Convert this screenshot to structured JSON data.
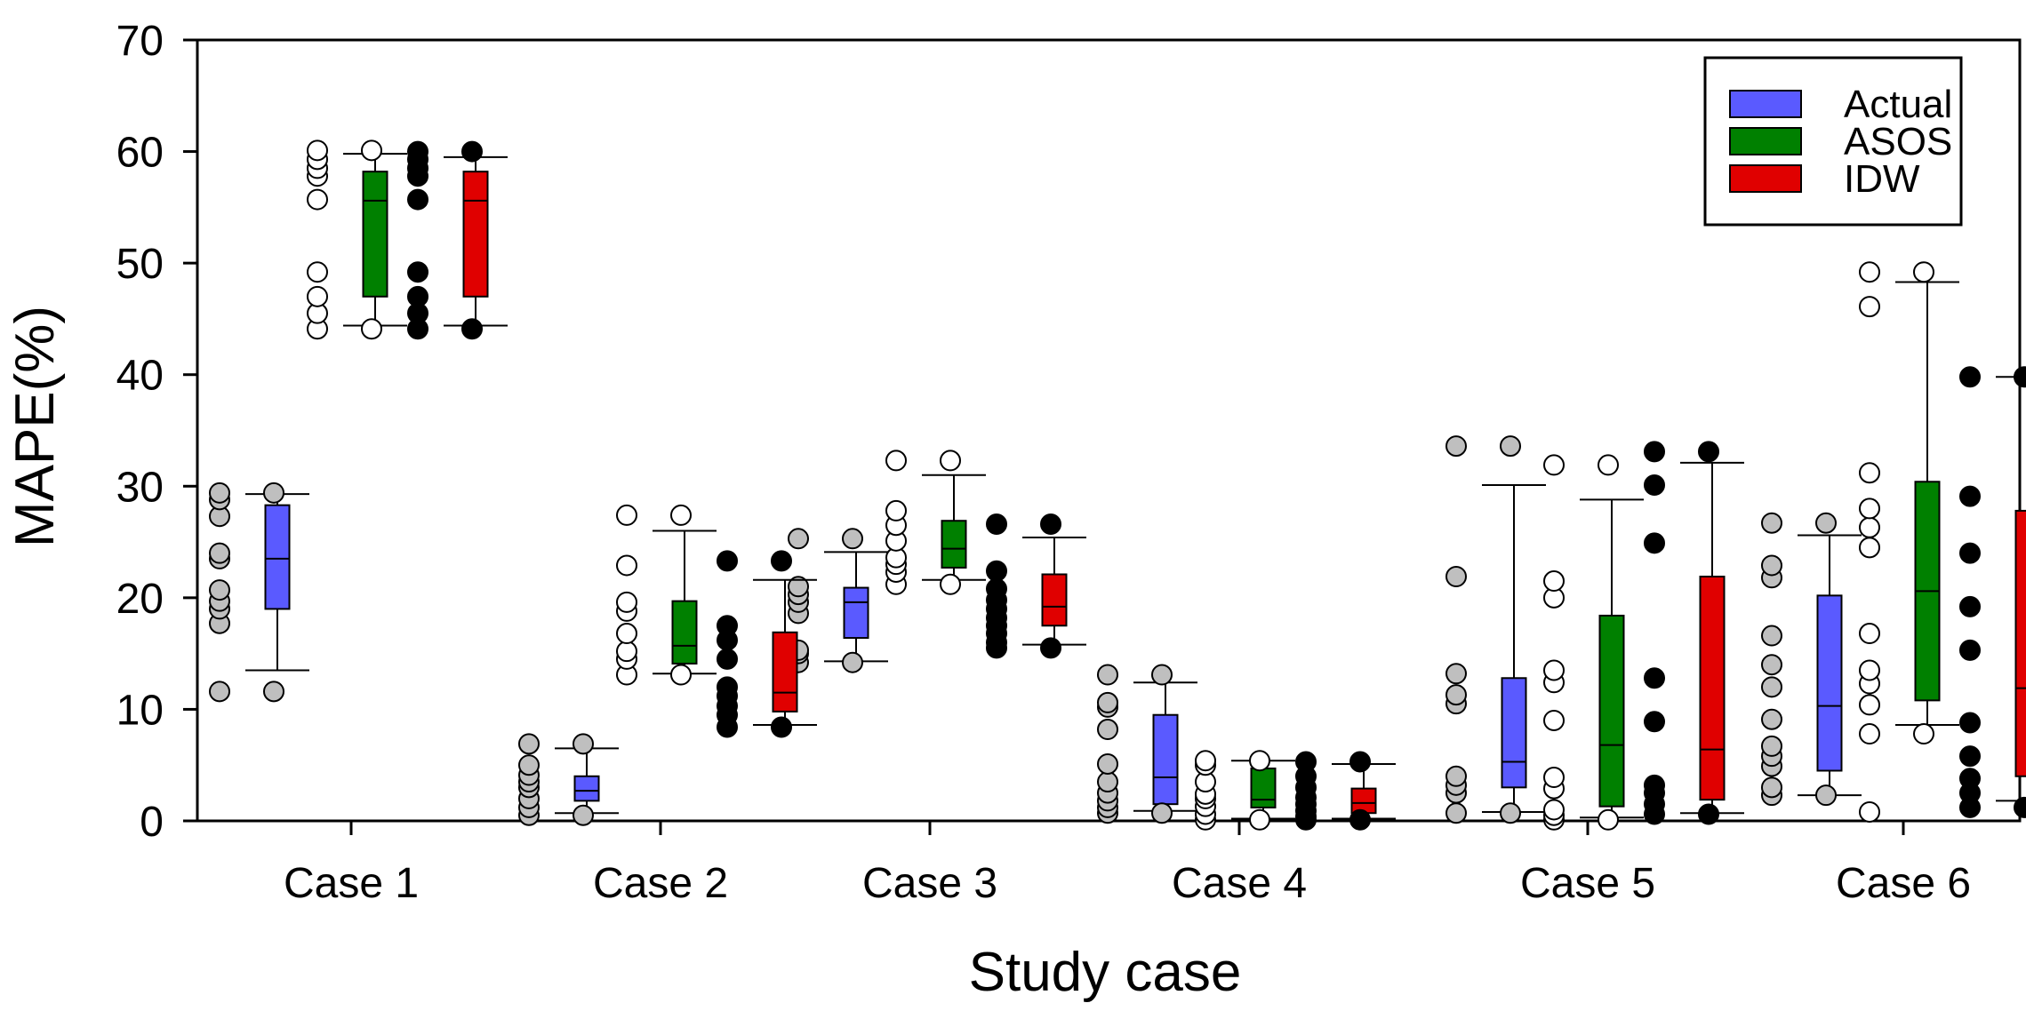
{
  "chart_data": {
    "type": "box",
    "title": "",
    "xlabel": "Study case",
    "ylabel": "MAPE(%)",
    "ylim": [
      0,
      70
    ],
    "yticks": [
      0,
      10,
      20,
      30,
      40,
      50,
      60,
      70
    ],
    "grid": false,
    "legend_position": "top-right",
    "categories": [
      "Case 1",
      "Case 2",
      "Case 3",
      "Case 4",
      "Case 5",
      "Case 6"
    ],
    "series": [
      {
        "name": "Actual",
        "color": "#5a5aff",
        "point_fill": "#bfbfbf",
        "boxes": [
          {
            "case": "Case 1",
            "wlo": 13.5,
            "q1": 19.0,
            "median": 23.5,
            "q3": 28.3,
            "whi": 29.3,
            "points": [
              11.6,
              17.7,
              19.0,
              19.7,
              20.7,
              23.5,
              24.0,
              27.3,
              28.8,
              29.4,
              29.4,
              11.6
            ]
          },
          {
            "case": "Case 2",
            "wlo": 0.7,
            "q1": 1.8,
            "median": 2.7,
            "q3": 4.0,
            "whi": 6.5,
            "points": [
              0.5,
              1.2,
              2.0,
              3.0,
              3.5,
              4.1,
              5.0,
              6.9,
              6.9,
              0.5
            ]
          },
          {
            "case": "Case 3",
            "wlo": 14.3,
            "q1": 16.4,
            "median": 19.6,
            "q3": 20.9,
            "whi": 24.1,
            "points": [
              14.2,
              15.0,
              15.3,
              18.6,
              19.6,
              20.3,
              21.0,
              25.3,
              25.3,
              14.2
            ]
          },
          {
            "case": "Case 4",
            "wlo": 0.9,
            "q1": 1.5,
            "median": 3.9,
            "q3": 9.5,
            "whi": 12.4,
            "points": [
              0.7,
              1.2,
              1.8,
              2.5,
              3.5,
              5.1,
              8.2,
              10.2,
              10.6,
              13.1,
              13.1,
              0.7
            ]
          },
          {
            "case": "Case 5",
            "wlo": 0.8,
            "q1": 3.0,
            "median": 5.3,
            "q3": 12.8,
            "whi": 30.1,
            "points": [
              0.7,
              2.5,
              3.2,
              4.0,
              10.5,
              11.3,
              13.2,
              21.9,
              33.6,
              33.6,
              0.7
            ]
          },
          {
            "case": "Case 6",
            "wlo": 2.3,
            "q1": 4.5,
            "median": 10.3,
            "q3": 20.2,
            "whi": 25.6,
            "points": [
              2.3,
              3.0,
              4.9,
              5.8,
              6.7,
              9.1,
              12.0,
              14.0,
              16.6,
              21.8,
              22.9,
              26.7,
              26.7,
              2.3
            ]
          }
        ]
      },
      {
        "name": "ASOS",
        "color": "#008000",
        "point_fill": "#ffffff",
        "boxes": [
          {
            "case": "Case 1",
            "wlo": 44.4,
            "q1": 47.0,
            "median": 55.6,
            "q3": 58.2,
            "whi": 59.8,
            "points": [
              44.1,
              45.5,
              47.0,
              49.2,
              55.7,
              57.8,
              58.5,
              59.3,
              60.1,
              60.1,
              44.1
            ]
          },
          {
            "case": "Case 2",
            "wlo": 13.2,
            "q1": 14.1,
            "median": 15.7,
            "q3": 19.7,
            "whi": 26.0,
            "points": [
              13.1,
              14.5,
              15.2,
              16.8,
              18.8,
              19.6,
              22.9,
              27.4,
              27.4,
              13.1
            ]
          },
          {
            "case": "Case 3",
            "wlo": 21.6,
            "q1": 22.7,
            "median": 24.4,
            "q3": 26.9,
            "whi": 31.0,
            "points": [
              21.2,
              22.3,
              23.0,
              23.6,
              25.1,
              26.5,
              27.8,
              32.3,
              32.3,
              21.2
            ]
          },
          {
            "case": "Case 4",
            "wlo": 0.2,
            "q1": 1.2,
            "median": 1.9,
            "q3": 4.7,
            "whi": 5.4,
            "points": [
              0.1,
              0.6,
              1.3,
              2.0,
              2.4,
              3.5,
              5.0,
              5.4,
              5.4,
              0.1
            ]
          },
          {
            "case": "Case 5",
            "wlo": 0.3,
            "q1": 1.3,
            "median": 6.8,
            "q3": 18.4,
            "whi": 28.8,
            "points": [
              0.1,
              0.5,
              1.0,
              2.9,
              3.9,
              9.0,
              12.4,
              13.5,
              20.0,
              21.5,
              31.9,
              31.9,
              0.1
            ]
          },
          {
            "case": "Case 6",
            "wlo": 8.6,
            "q1": 10.8,
            "median": 20.6,
            "q3": 30.4,
            "whi": 48.3,
            "points": [
              0.8,
              7.8,
              10.4,
              12.3,
              13.5,
              16.8,
              24.5,
              26.3,
              28.0,
              31.2,
              46.1,
              49.2,
              49.2,
              7.8
            ]
          }
        ]
      },
      {
        "name": "IDW",
        "color": "#e00000",
        "point_fill": "#000000",
        "boxes": [
          {
            "case": "Case 1",
            "wlo": 44.4,
            "q1": 47.0,
            "median": 55.6,
            "q3": 58.2,
            "whi": 59.5,
            "points": [
              44.1,
              45.5,
              47.0,
              49.2,
              55.7,
              57.8,
              58.5,
              59.3,
              60.0,
              60.0,
              44.1
            ]
          },
          {
            "case": "Case 2",
            "wlo": 8.6,
            "q1": 9.8,
            "median": 11.5,
            "q3": 16.9,
            "whi": 21.6,
            "points": [
              8.4,
              9.5,
              10.3,
              11.2,
              12.0,
              14.5,
              16.2,
              17.5,
              23.3,
              23.3,
              8.4
            ]
          },
          {
            "case": "Case 3",
            "wlo": 15.8,
            "q1": 17.5,
            "median": 19.2,
            "q3": 22.1,
            "whi": 25.4,
            "points": [
              15.5,
              16.0,
              16.8,
              17.5,
              18.2,
              19.0,
              19.8,
              20.8,
              22.4,
              26.6,
              26.6,
              15.5
            ]
          },
          {
            "case": "Case 4",
            "wlo": 0.2,
            "q1": 0.7,
            "median": 1.6,
            "q3": 2.9,
            "whi": 5.1,
            "points": [
              0.1,
              0.4,
              0.9,
              1.5,
              2.1,
              3.0,
              4.0,
              5.3,
              5.3,
              0.1
            ]
          },
          {
            "case": "Case 5",
            "wlo": 0.7,
            "q1": 1.9,
            "median": 6.4,
            "q3": 21.9,
            "whi": 32.1,
            "points": [
              0.6,
              1.5,
              2.5,
              3.2,
              8.9,
              12.8,
              24.9,
              30.1,
              33.1,
              33.1,
              0.6
            ]
          },
          {
            "case": "Case 6",
            "wlo": 1.8,
            "q1": 4.0,
            "median": 11.9,
            "q3": 27.8,
            "whi": 39.8,
            "points": [
              1.2,
              2.5,
              3.8,
              5.8,
              8.8,
              15.3,
              19.2,
              24.0,
              29.1,
              39.8,
              39.8,
              1.2
            ]
          }
        ]
      }
    ]
  }
}
